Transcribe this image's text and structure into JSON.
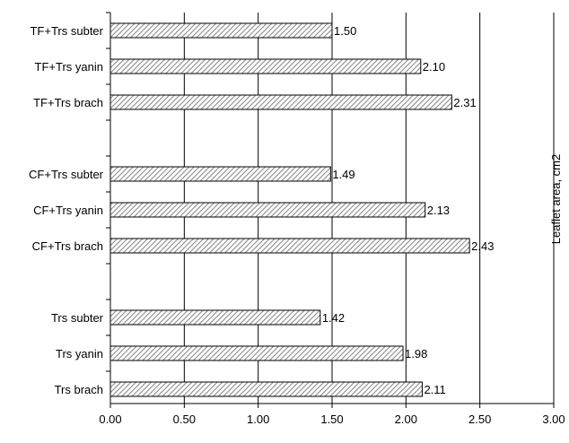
{
  "chart_data": {
    "type": "bar",
    "orientation": "horizontal",
    "title": "",
    "xlabel": "",
    "ylabel": "Leaflet area, cm2",
    "xlim": [
      0,
      3
    ],
    "x_ticks": [
      "0.00",
      "0.50",
      "1.00",
      "1.50",
      "2.00",
      "2.50",
      "3.00"
    ],
    "grid": "vertical gridlines at major ticks",
    "bar_fill": "diagonal hatch (grey/white)",
    "categories": [
      "TF+Trs subter",
      "TF+Trs yanin",
      "TF+Trs brach",
      "",
      "CF+Trs subter",
      "CF+Trs yanin",
      "CF+Trs brach",
      "",
      "Trs subter",
      "Trs yanin",
      "Trs brach"
    ],
    "values": [
      1.5,
      2.1,
      2.31,
      null,
      1.49,
      2.13,
      2.43,
      null,
      1.42,
      1.98,
      2.11
    ],
    "data_labels": [
      "1.50",
      "2.10",
      "2.31",
      "",
      "1.49",
      "2.13",
      "2.43",
      "",
      "1.42",
      "1.98",
      "2.11"
    ]
  },
  "colors": {
    "bar_stroke": "#000000",
    "hatch": "#8c8c8c",
    "grid": "#000000",
    "background": "#ffffff"
  }
}
